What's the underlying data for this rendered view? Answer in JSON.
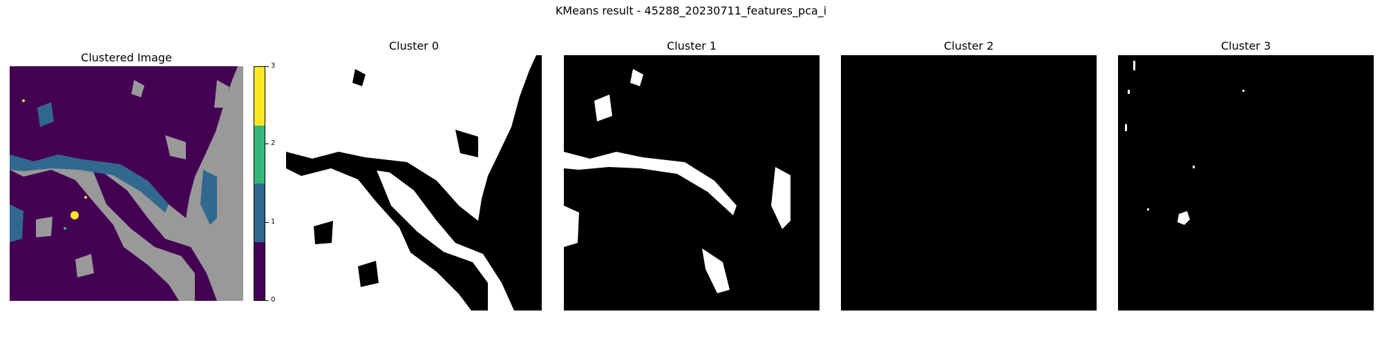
{
  "figure": {
    "title": "KMeans result - 45288_20230711_features_pca_i"
  },
  "panels": {
    "clustered": {
      "title": "Clustered Image"
    },
    "cluster0": {
      "title": "Cluster 0"
    },
    "cluster1": {
      "title": "Cluster 1"
    },
    "cluster2": {
      "title": "Cluster 2"
    },
    "cluster3": {
      "title": "Cluster 3"
    }
  },
  "colorbar": {
    "ticks": [
      "0",
      "1",
      "2",
      "3"
    ],
    "colors": [
      "#440154",
      "#31688e",
      "#35b779",
      "#fde725"
    ]
  },
  "colors": {
    "cluster0": "#440154",
    "cluster1": "#31688e",
    "cluster2": "#35b779",
    "cluster3": "#fde725",
    "masked": "#999999",
    "mask_on": "#ffffff",
    "mask_off": "#000000"
  }
}
